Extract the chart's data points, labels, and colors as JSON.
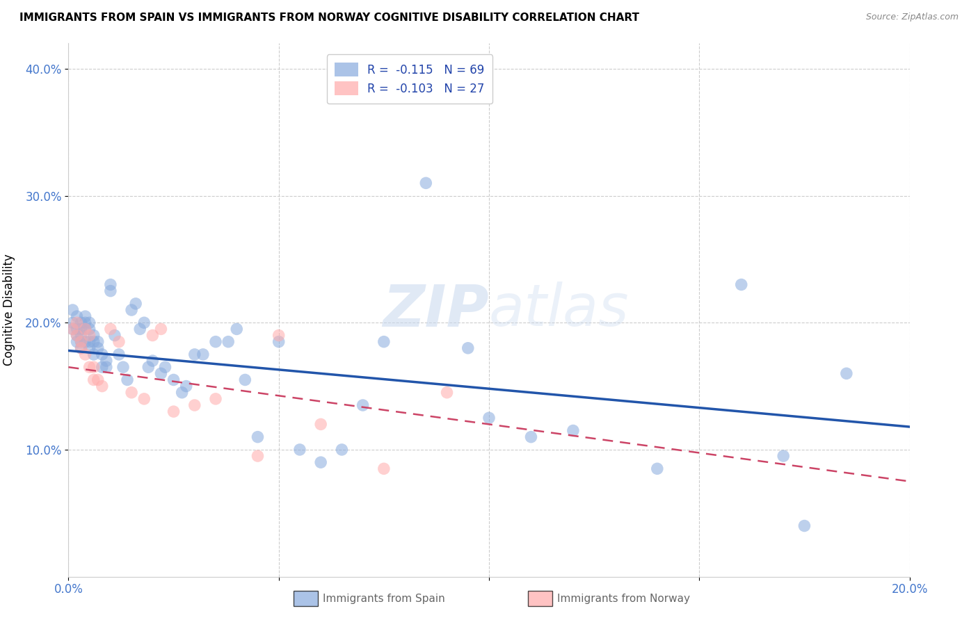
{
  "title": "IMMIGRANTS FROM SPAIN VS IMMIGRANTS FROM NORWAY COGNITIVE DISABILITY CORRELATION CHART",
  "source": "Source: ZipAtlas.com",
  "ylabel": "Cognitive Disability",
  "xlim": [
    0.0,
    0.2
  ],
  "ylim": [
    0.0,
    0.42
  ],
  "yticks": [
    0.1,
    0.2,
    0.3,
    0.4
  ],
  "ytick_labels": [
    "10.0%",
    "20.0%",
    "30.0%",
    "40.0%"
  ],
  "xtick_positions": [
    0.0,
    0.05,
    0.1,
    0.15,
    0.2
  ],
  "xtick_labels": [
    "0.0%",
    "",
    "",
    "",
    "20.0%"
  ],
  "spain_R": -0.115,
  "spain_N": 69,
  "norway_R": -0.103,
  "norway_N": 27,
  "spain_color": "#88AADD",
  "norway_color": "#FFAAAA",
  "trend_spain_color": "#2255AA",
  "trend_norway_color": "#CC4466",
  "watermark_color": "#C8D8EE",
  "spain_x": [
    0.001,
    0.001,
    0.001,
    0.002,
    0.002,
    0.002,
    0.002,
    0.003,
    0.003,
    0.003,
    0.003,
    0.003,
    0.004,
    0.004,
    0.004,
    0.004,
    0.005,
    0.005,
    0.005,
    0.005,
    0.006,
    0.006,
    0.006,
    0.007,
    0.007,
    0.008,
    0.008,
    0.009,
    0.009,
    0.01,
    0.01,
    0.011,
    0.012,
    0.013,
    0.014,
    0.015,
    0.016,
    0.017,
    0.018,
    0.019,
    0.02,
    0.022,
    0.023,
    0.025,
    0.027,
    0.028,
    0.03,
    0.032,
    0.035,
    0.038,
    0.04,
    0.042,
    0.045,
    0.05,
    0.055,
    0.06,
    0.065,
    0.07,
    0.075,
    0.085,
    0.095,
    0.1,
    0.11,
    0.12,
    0.14,
    0.16,
    0.17,
    0.175,
    0.185
  ],
  "spain_y": [
    0.195,
    0.2,
    0.21,
    0.195,
    0.205,
    0.19,
    0.185,
    0.2,
    0.195,
    0.185,
    0.19,
    0.18,
    0.2,
    0.205,
    0.195,
    0.185,
    0.195,
    0.2,
    0.185,
    0.18,
    0.19,
    0.185,
    0.175,
    0.185,
    0.18,
    0.175,
    0.165,
    0.17,
    0.165,
    0.23,
    0.225,
    0.19,
    0.175,
    0.165,
    0.155,
    0.21,
    0.215,
    0.195,
    0.2,
    0.165,
    0.17,
    0.16,
    0.165,
    0.155,
    0.145,
    0.15,
    0.175,
    0.175,
    0.185,
    0.185,
    0.195,
    0.155,
    0.11,
    0.185,
    0.1,
    0.09,
    0.1,
    0.135,
    0.185,
    0.31,
    0.18,
    0.125,
    0.11,
    0.115,
    0.085,
    0.23,
    0.095,
    0.04,
    0.16
  ],
  "norway_x": [
    0.001,
    0.002,
    0.002,
    0.003,
    0.003,
    0.004,
    0.004,
    0.005,
    0.005,
    0.006,
    0.006,
    0.007,
    0.008,
    0.01,
    0.012,
    0.015,
    0.018,
    0.02,
    0.022,
    0.025,
    0.03,
    0.035,
    0.045,
    0.05,
    0.06,
    0.075,
    0.09
  ],
  "norway_y": [
    0.195,
    0.2,
    0.19,
    0.18,
    0.185,
    0.195,
    0.175,
    0.19,
    0.165,
    0.165,
    0.155,
    0.155,
    0.15,
    0.195,
    0.185,
    0.145,
    0.14,
    0.19,
    0.195,
    0.13,
    0.135,
    0.14,
    0.095,
    0.19,
    0.12,
    0.085,
    0.145
  ],
  "trend_spain_intercept": 0.178,
  "trend_spain_slope": -0.3,
  "trend_norway_intercept": 0.165,
  "trend_norway_slope": -0.45
}
